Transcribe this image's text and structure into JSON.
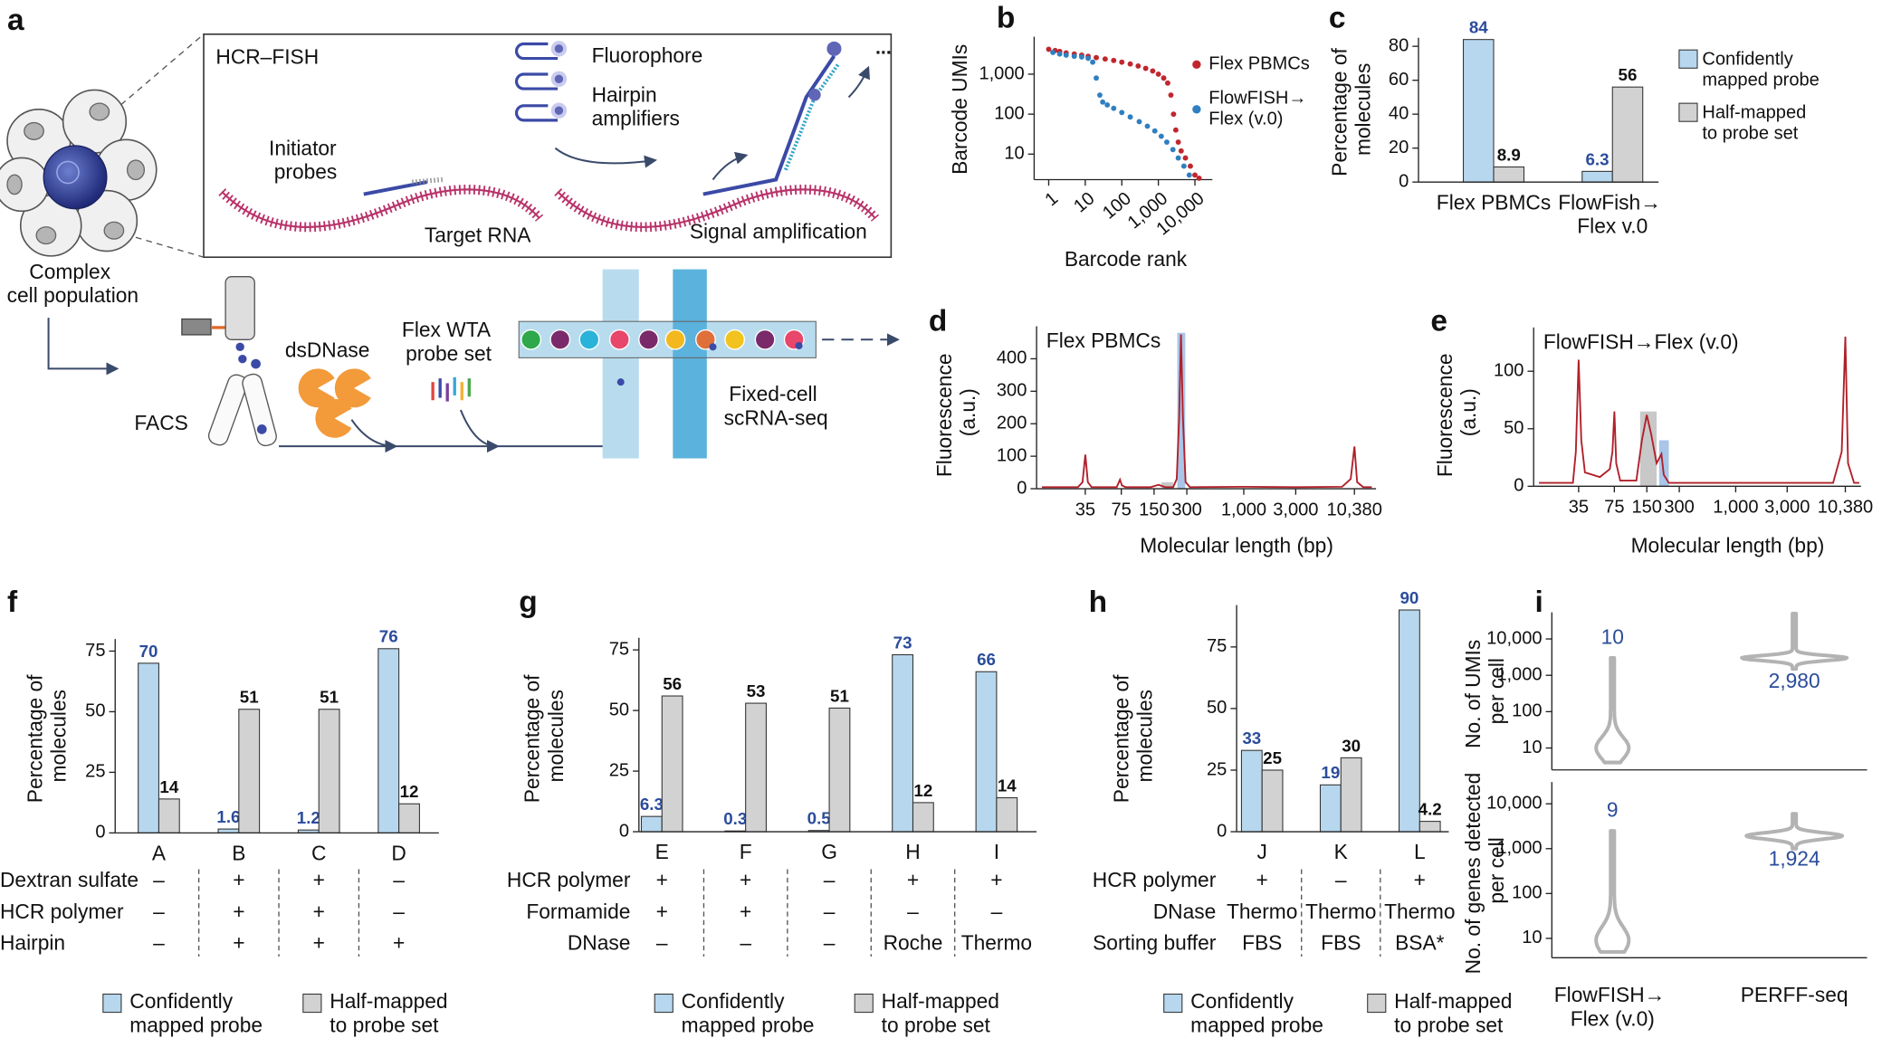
{
  "panels": [
    "a",
    "b",
    "c",
    "d",
    "e",
    "f",
    "g",
    "h",
    "i"
  ],
  "diagram": {
    "box_title": "HCR–FISH",
    "fluorophore": "Fluorophore",
    "hairpin": "Hairpin\namplifiers",
    "initiator": "Initiator\nprobes",
    "target": "Target RNA",
    "signal": "Signal amplification",
    "population": "Complex\ncell population",
    "facs": "FACS",
    "dsdnase": "dsDNase",
    "probe_set": "Flex WTA\nprobe set",
    "scrna": "Fixed-cell\nscRNA-seq"
  },
  "chart_data": [
    {
      "type": "scatter",
      "ylabel": "Barcode UMIs",
      "xlabel": "Barcode rank",
      "xscale": "log",
      "yscale": "log",
      "legend": "right",
      "xlim": [
        0.4,
        30000
      ],
      "ylim": [
        2.3,
        8700
      ],
      "xticks": [
        1,
        10,
        100,
        {
          "value": 1000,
          "label": "1,000"
        },
        {
          "value": 10000,
          "label": "10,000"
        }
      ],
      "yticks": [
        10,
        100,
        {
          "value": 1000,
          "label": "1,000"
        }
      ],
      "series": [
        {
          "name": "Flex PBMCs",
          "color": "#c0272d",
          "x": [
            1,
            1.5,
            2,
            3,
            5,
            8,
            12,
            20,
            35,
            60,
            100,
            170,
            280,
            450,
            700,
            1000,
            1400,
            1800,
            2200,
            2600,
            3000,
            3500,
            4200,
            5500,
            7500,
            10000,
            13000
          ],
          "values": [
            4200,
            3900,
            3700,
            3400,
            3200,
            3000,
            2800,
            2600,
            2400,
            2200,
            2000,
            1800,
            1600,
            1400,
            1200,
            1000,
            800,
            600,
            300,
            100,
            40,
            20,
            12,
            8,
            5,
            3,
            2.5
          ]
        },
        {
          "name": "FlowFISH→\nFlex (v.0)",
          "color": "#2f7fc1",
          "x": [
            1.3,
            2,
            3,
            5,
            8,
            12,
            16,
            20,
            25,
            30,
            40,
            60,
            100,
            170,
            300,
            500,
            800,
            1200,
            1700,
            2500,
            3500,
            5000,
            7000
          ],
          "values": [
            3500,
            3200,
            3000,
            2800,
            2700,
            2500,
            2000,
            800,
            300,
            200,
            170,
            140,
            110,
            85,
            65,
            50,
            38,
            28,
            20,
            13,
            8,
            5,
            3
          ]
        }
      ]
    },
    {
      "type": "bar",
      "ylabel": "Percentage of\nmolecules",
      "legend": "right",
      "categories": [
        "Flex PBMCs",
        "FlowFish→\nFlex v.0"
      ],
      "ylim": [
        0,
        85
      ],
      "yticks": [
        0,
        20,
        40,
        60,
        80
      ],
      "series": [
        {
          "name": "Confidently\nmapped probe",
          "color": "#b7d7ee",
          "label_color": "#2b4c9b",
          "values": [
            84,
            6.3
          ]
        },
        {
          "name": "Half-mapped\nto probe set",
          "color": "#d2d2d2",
          "label_color": "#111111",
          "values": [
            8.9,
            56
          ]
        }
      ]
    },
    {
      "type": "line",
      "title": "Flex PBMCs",
      "ylabel": "Fluorescence\n(a.u.)",
      "xlabel": "Molecular length (bp)",
      "xscale": "log",
      "color": "#b0202a",
      "xlim": [
        12.5,
        16400
      ],
      "ylim": [
        0,
        500
      ],
      "xticks": [
        35,
        75,
        150,
        300,
        {
          "value": 1000,
          "label": "1,000"
        },
        {
          "value": 3000,
          "label": "3,000"
        },
        {
          "value": 10380,
          "label": "10,380"
        }
      ],
      "yticks": [
        0,
        100,
        200,
        300,
        400
      ],
      "bands": [
        {
          "x0": 175,
          "x1": 225,
          "top": 20,
          "color": "#c8c8c8"
        },
        {
          "x0": 245,
          "x1": 290,
          "top": 480,
          "color": "#a9c6e8"
        }
      ],
      "x": [
        14,
        30,
        33,
        35,
        37,
        40,
        68,
        73,
        76,
        82,
        140,
        165,
        190,
        225,
        242,
        255,
        265,
        276,
        292,
        320,
        1000,
        3000,
        8000,
        9600,
        10380,
        11000,
        12500,
        15000
      ],
      "values": [
        5,
        5,
        20,
        105,
        20,
        5,
        5,
        28,
        10,
        5,
        5,
        12,
        5,
        5,
        30,
        220,
        475,
        220,
        20,
        5,
        6,
        5,
        6,
        30,
        130,
        20,
        5,
        5
      ]
    },
    {
      "type": "line",
      "title": "FlowFISH→Flex (v.0)",
      "ylabel": "Fluorescence\n(a.u.)",
      "xlabel": "Molecular length (bp)",
      "xscale": "log",
      "color": "#b0202a",
      "xlim": [
        13.4,
        14500
      ],
      "ylim": [
        0,
        138
      ],
      "xticks": [
        35,
        75,
        150,
        300,
        {
          "value": 1000,
          "label": "1,000"
        },
        {
          "value": 3000,
          "label": "3,000"
        },
        {
          "value": 10380,
          "label": "10,380"
        }
      ],
      "yticks": [
        0,
        50,
        100
      ],
      "bands": [
        {
          "x0": 130,
          "x1": 185,
          "top": 65,
          "color": "#c8c8c8"
        },
        {
          "x0": 195,
          "x1": 240,
          "top": 40,
          "color": "#a9c6e8"
        }
      ],
      "x": [
        15,
        31,
        33,
        35,
        37,
        40,
        55,
        68,
        72,
        75,
        78,
        85,
        120,
        135,
        150,
        165,
        185,
        205,
        215,
        240,
        500,
        3000,
        8000,
        9600,
        10380,
        11000,
        12500,
        14000
      ],
      "values": [
        3,
        3,
        30,
        110,
        40,
        12,
        8,
        15,
        30,
        65,
        20,
        5,
        5,
        40,
        62,
        45,
        20,
        28,
        10,
        3,
        3,
        3,
        3,
        30,
        130,
        20,
        3,
        3
      ]
    },
    {
      "type": "bar",
      "ylabel": "Percentage of\nmolecules",
      "legend": "bottom",
      "categories": [
        "A",
        "B",
        "C",
        "D"
      ],
      "ylim": [
        0,
        80
      ],
      "yticks": [
        0,
        25,
        50,
        75
      ],
      "series": [
        {
          "name": "Confidently\nmapped probe",
          "color": "#b7d7ee",
          "label_color": "#2b4c9b",
          "values": [
            70,
            1.6,
            1.2,
            76
          ]
        },
        {
          "name": "Half-mapped\nto probe set",
          "color": "#d2d2d2",
          "label_color": "#111111",
          "values": [
            14,
            51,
            51,
            12
          ]
        }
      ],
      "conditions": [
        {
          "name": "Dextran sulfate",
          "values": [
            "–",
            "+",
            "+",
            "–"
          ]
        },
        {
          "name": "HCR polymer",
          "values": [
            "–",
            "+",
            "+",
            "–"
          ]
        },
        {
          "name": "Hairpin",
          "values": [
            "–",
            "+",
            "+",
            "+"
          ]
        }
      ]
    },
    {
      "type": "bar",
      "ylabel": "Percentage of\nmolecules",
      "legend": "bottom",
      "categories": [
        "E",
        "F",
        "G",
        "H",
        "I"
      ],
      "ylim": [
        0,
        80
      ],
      "yticks": [
        0,
        25,
        50,
        75
      ],
      "series": [
        {
          "name": "Confidently\nmapped probe",
          "color": "#b7d7ee",
          "label_color": "#2b4c9b",
          "values": [
            6.3,
            0.3,
            0.5,
            73,
            66
          ]
        },
        {
          "name": "Half-mapped\nto probe set",
          "color": "#d2d2d2",
          "label_color": "#111111",
          "values": [
            56,
            53,
            51,
            12,
            14
          ]
        }
      ],
      "conditions": [
        {
          "name": "HCR polymer",
          "values": [
            "+",
            "+",
            "–",
            "+",
            "+"
          ]
        },
        {
          "name": "Formamide",
          "values": [
            "+",
            "+",
            "–",
            "–",
            "–"
          ]
        },
        {
          "name": "DNase",
          "values": [
            "–",
            "–",
            "–",
            "Roche",
            "Thermo"
          ]
        }
      ]
    },
    {
      "type": "bar",
      "ylabel": "Percentage of\nmolecules",
      "legend": "bottom",
      "categories": [
        "J",
        "K",
        "L"
      ],
      "ylim": [
        0,
        92
      ],
      "yticks": [
        0,
        25,
        50,
        75
      ],
      "series": [
        {
          "name": "Confidently\nmapped probe",
          "color": "#b7d7ee",
          "label_color": "#2b4c9b",
          "values": [
            33,
            19,
            90
          ]
        },
        {
          "name": "Half-mapped\nto probe set",
          "color": "#d2d2d2",
          "label_color": "#111111",
          "values": [
            25,
            30,
            4.2
          ]
        }
      ],
      "conditions": [
        {
          "name": "HCR polymer",
          "values": [
            "+",
            "–",
            "+"
          ]
        },
        {
          "name": "DNase",
          "values": [
            "Thermo",
            "Thermo",
            "Thermo"
          ]
        },
        {
          "name": "Sorting buffer",
          "values": [
            "FBS",
            "FBS",
            "BSA*"
          ]
        }
      ]
    },
    {
      "type": "violin",
      "ylabel": "No. of UMIs\nper cell",
      "yscale": "log",
      "color": "#b3b3b3",
      "label_color": "#2b4c9b",
      "ylim": [
        2.5,
        54000
      ],
      "yticks": [
        10,
        100,
        {
          "value": 1000,
          "label": "1,000"
        },
        {
          "value": 10000,
          "label": "10,000"
        }
      ],
      "medians": [
        10,
        2980
      ],
      "value_labels": [
        "10",
        "2,980"
      ],
      "mins": [
        4,
        1500
      ],
      "maxs": [
        3000,
        50000
      ]
    },
    {
      "type": "violin",
      "ylabel": "No. of genes detected\nper cell",
      "yscale": "log",
      "color": "#b3b3b3",
      "label_color": "#2b4c9b",
      "categories": [
        "FlowFISH→\nFlex (v.0)",
        "PERFF-seq"
      ],
      "ylim": [
        3.7,
        30600
      ],
      "yticks": [
        10,
        100,
        {
          "value": 1000,
          "label": "1,000"
        },
        {
          "value": 10000,
          "label": "10,000"
        }
      ],
      "medians": [
        9,
        1924
      ],
      "value_labels": [
        "9",
        "1,924"
      ],
      "mins": [
        5,
        1000
      ],
      "maxs": [
        2500,
        6000
      ]
    }
  ]
}
